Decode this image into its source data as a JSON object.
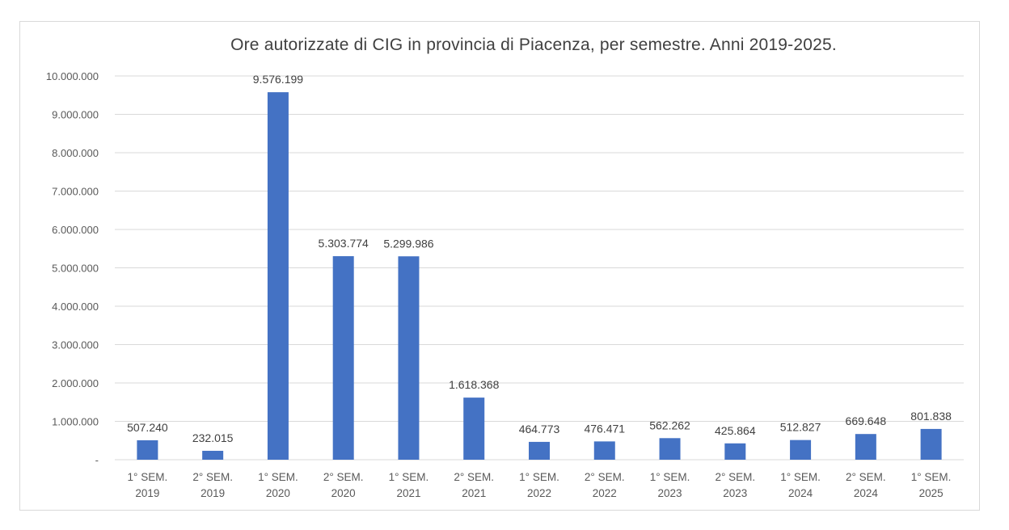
{
  "chart_data": {
    "type": "bar",
    "title": "Ore autorizzate di CIG in provincia di Piacenza, per semestre. Anni 2019-2025.",
    "categories": [
      [
        "1° SEM.",
        "2019"
      ],
      [
        "2° SEM.",
        "2019"
      ],
      [
        "1° SEM.",
        "2020"
      ],
      [
        "2° SEM.",
        "2020"
      ],
      [
        "1° SEM.",
        "2021"
      ],
      [
        "2° SEM.",
        "2021"
      ],
      [
        "1° SEM.",
        "2022"
      ],
      [
        "2° SEM.",
        "2022"
      ],
      [
        "1° SEM.",
        "2023"
      ],
      [
        "2° SEM.",
        "2023"
      ],
      [
        "1° SEM.",
        "2024"
      ],
      [
        "2° SEM.",
        "2024"
      ],
      [
        "1° SEM.",
        "2025"
      ]
    ],
    "values": [
      507240,
      232015,
      9576199,
      5303774,
      5299986,
      1618368,
      464773,
      476471,
      562262,
      425864,
      512827,
      669648,
      801838
    ],
    "data_labels": [
      "507.240",
      "232.015",
      "9.576.199",
      "5.303.774",
      "5.299.986",
      "1.618.368",
      "464.773",
      "476.471",
      "562.262",
      "425.864",
      "512.827",
      "669.648",
      "801.838"
    ],
    "ylim": [
      0,
      10000000
    ],
    "y_ticks": [
      0,
      1000000,
      2000000,
      3000000,
      4000000,
      5000000,
      6000000,
      7000000,
      8000000,
      9000000,
      10000000
    ],
    "y_tick_labels": [
      "-",
      "1.000.000",
      "2.000.000",
      "3.000.000",
      "4.000.000",
      "5.000.000",
      "6.000.000",
      "7.000.000",
      "8.000.000",
      "9.000.000",
      "10.000.000"
    ],
    "grid": true,
    "legend": "none",
    "bar_color": "#4472c4"
  }
}
